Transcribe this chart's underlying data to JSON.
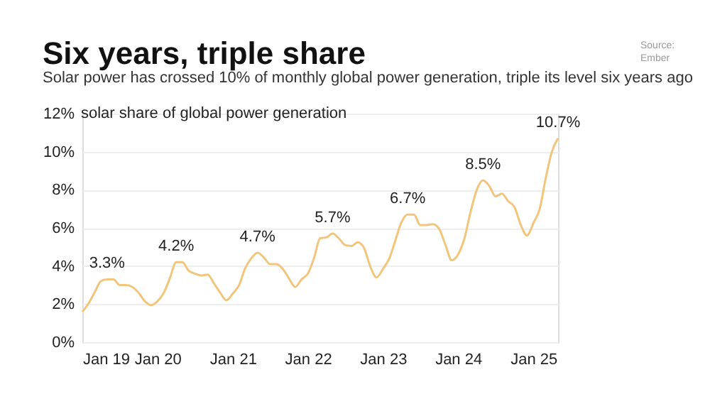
{
  "chart_data": {
    "type": "line",
    "title": "Six years, triple share",
    "subtitle": "Solar power has crossed 10% of monthly global power generation, triple its level six years ago",
    "ylabel": "solar share of global power generation",
    "annotations": [
      "Source:\nEmber"
    ],
    "x": [
      "2019-01",
      "2019-02",
      "2019-03",
      "2019-04",
      "2019-05",
      "2019-06",
      "2019-07",
      "2019-08",
      "2019-09",
      "2019-10",
      "2019-11",
      "2019-12",
      "2020-01",
      "2020-02",
      "2020-03",
      "2020-04",
      "2020-05",
      "2020-06",
      "2020-07",
      "2020-08",
      "2020-09",
      "2020-10",
      "2020-11",
      "2020-12",
      "2021-01",
      "2021-02",
      "2021-03",
      "2021-04",
      "2021-05",
      "2021-06",
      "2021-07",
      "2021-08",
      "2021-09",
      "2021-10",
      "2021-11",
      "2021-12",
      "2022-01",
      "2022-02",
      "2022-03",
      "2022-04",
      "2022-05",
      "2022-06",
      "2022-07",
      "2022-08",
      "2022-09",
      "2022-10",
      "2022-11",
      "2022-12",
      "2023-01",
      "2023-02",
      "2023-03",
      "2023-04",
      "2023-05",
      "2023-06",
      "2023-07",
      "2023-08",
      "2023-09",
      "2023-10",
      "2023-11",
      "2023-12",
      "2024-01",
      "2024-02",
      "2024-03",
      "2024-04",
      "2024-05",
      "2024-06",
      "2024-07",
      "2024-08",
      "2024-09",
      "2024-10",
      "2024-11",
      "2024-12",
      "2025-01",
      "2025-02",
      "2025-03",
      "2025-04",
      "2025-05"
    ],
    "series": [
      {
        "color": "#f2c57c",
        "values": [
          1.6,
          2.05,
          2.6,
          3.2,
          3.3,
          3.3,
          3.0,
          3.0,
          2.9,
          2.6,
          2.15,
          1.95,
          2.15,
          2.6,
          3.35,
          4.2,
          4.2,
          3.75,
          3.6,
          3.5,
          3.55,
          3.1,
          2.6,
          2.2,
          2.55,
          3.0,
          3.85,
          4.4,
          4.7,
          4.45,
          4.1,
          4.1,
          3.85,
          3.35,
          2.9,
          3.3,
          3.6,
          4.45,
          5.45,
          5.5,
          5.7,
          5.45,
          5.1,
          5.05,
          5.25,
          4.95,
          3.95,
          3.4,
          3.85,
          4.4,
          5.3,
          6.3,
          6.7,
          6.7,
          6.15,
          6.15,
          6.2,
          5.95,
          5.1,
          4.3,
          4.6,
          5.45,
          6.8,
          8.0,
          8.5,
          8.2,
          7.65,
          7.8,
          7.4,
          7.1,
          6.15,
          5.6,
          6.25,
          7.0,
          8.55,
          10.0,
          10.7
        ],
        "value_labels": [
          null,
          null,
          null,
          null,
          "3.3%",
          null,
          null,
          null,
          null,
          null,
          null,
          null,
          null,
          null,
          null,
          "4.2%",
          null,
          null,
          null,
          null,
          null,
          null,
          null,
          null,
          null,
          null,
          null,
          null,
          "4.7%",
          null,
          null,
          null,
          null,
          null,
          null,
          null,
          null,
          null,
          null,
          null,
          "5.7%",
          null,
          null,
          null,
          null,
          null,
          null,
          null,
          null,
          null,
          null,
          null,
          "6.7%",
          null,
          null,
          null,
          null,
          null,
          null,
          null,
          null,
          null,
          null,
          null,
          "8.5%",
          null,
          null,
          null,
          null,
          null,
          null,
          null,
          null,
          null,
          null,
          null,
          "10.7%"
        ]
      }
    ],
    "xlim": [
      "2019-01",
      "2025-05"
    ],
    "xticks": [
      {
        "value": "2019-01",
        "label": "Jan 19"
      },
      {
        "value": "2020-01",
        "label": "Jan 20"
      },
      {
        "value": "2021-01",
        "label": "Jan 21"
      },
      {
        "value": "2022-01",
        "label": "Jan 22"
      },
      {
        "value": "2023-01",
        "label": "Jan 23"
      },
      {
        "value": "2024-01",
        "label": "Jan 24"
      },
      {
        "value": "2025-01",
        "label": "Jan 25"
      }
    ],
    "ylim": [
      0,
      12
    ],
    "yticks": [
      {
        "value": 0,
        "label": "0%"
      },
      {
        "value": 2,
        "label": "2%"
      },
      {
        "value": 4,
        "label": "4%"
      },
      {
        "value": 6,
        "label": "6%"
      },
      {
        "value": 8,
        "label": "8%"
      },
      {
        "value": 10,
        "label": "10%"
      },
      {
        "value": 12,
        "label": "12%"
      }
    ],
    "grid": "y",
    "legend": false,
    "marker": "none",
    "line_style": "solid"
  }
}
